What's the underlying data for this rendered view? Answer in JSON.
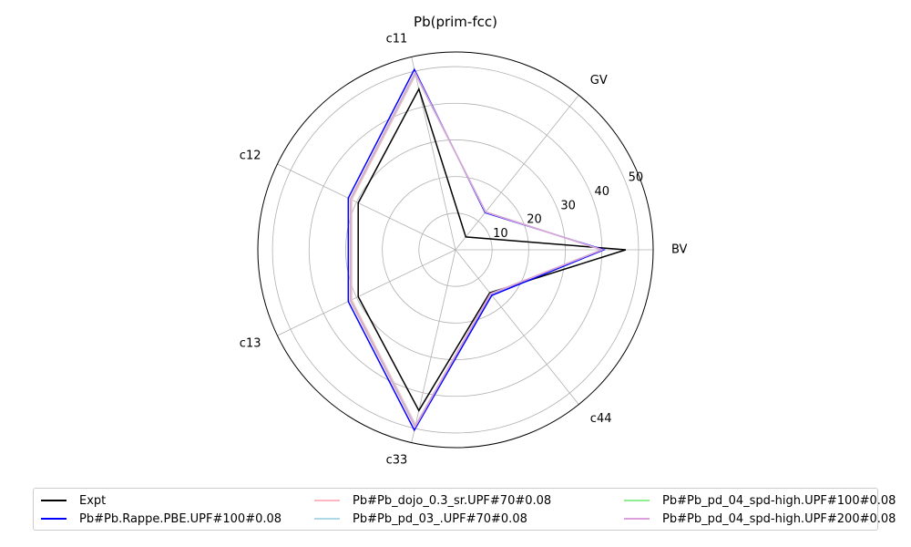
{
  "chart_data": {
    "type": "radar",
    "title": "Pb(prim-fcc)",
    "axes": [
      "BV",
      "GV",
      "c11",
      "c12",
      "c13",
      "c33",
      "c44"
    ],
    "rlim": [
      0,
      54
    ],
    "rticks": [
      10,
      20,
      30,
      40,
      50
    ],
    "grid": true,
    "legend_position": "bottom",
    "series": [
      {
        "name": "Expt",
        "color": "#000000",
        "values": [
          46.5,
          4.5,
          45.0,
          29.5,
          29.5,
          45.0,
          15.0
        ]
      },
      {
        "name": "Pb#Pb.Rappe.PBE.UPF#100#0.08",
        "color": "#0000ff",
        "values": [
          40.5,
          13.0,
          50.5,
          32.5,
          32.5,
          50.5,
          15.9
        ]
      },
      {
        "name": "Pb#Pb_dojo_0.3_sr.UPF#70#0.08",
        "color": "#ffb6c1",
        "values": [
          40.0,
          13.2,
          49.0,
          31.5,
          31.5,
          49.0,
          15.3
        ]
      },
      {
        "name": "Pb#Pb_pd_03_.UPF#70#0.08",
        "color": "#add8e6",
        "values": [
          40.0,
          13.2,
          49.3,
          31.8,
          31.8,
          49.3,
          15.4
        ]
      },
      {
        "name": "Pb#Pb_pd_04_spd-high.UPF#100#0.08",
        "color": "#90ee90",
        "values": [
          40.0,
          13.2,
          49.5,
          31.8,
          31.8,
          49.5,
          15.4
        ]
      },
      {
        "name": "Pb#Pb_pd_04_spd-high.UPF#200#0.08",
        "color": "#dda0dd",
        "values": [
          40.0,
          13.2,
          49.6,
          31.9,
          31.9,
          49.6,
          15.4
        ]
      }
    ]
  }
}
